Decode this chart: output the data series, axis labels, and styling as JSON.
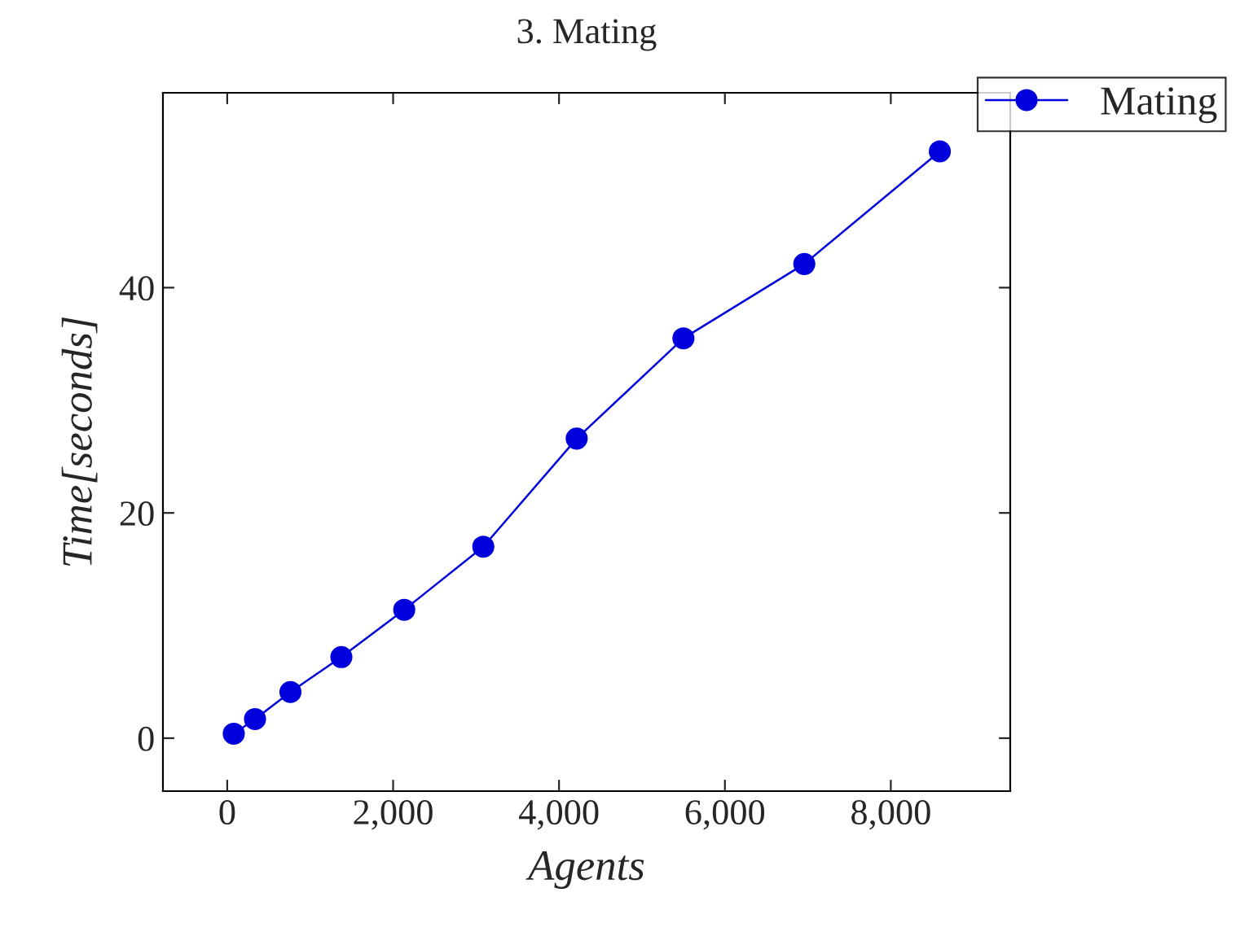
{
  "chart_data": {
    "type": "line",
    "title": "3. Mating",
    "xlabel": "Agents",
    "ylabel": "Time[seconds]",
    "x": [
      79,
      335,
      762,
      1376,
      2134,
      3087,
      4213,
      5500,
      6957,
      8591
    ],
    "series": [
      {
        "name": "Mating",
        "color": "#0000dd",
        "values": [
          0.4,
          1.7,
          4.1,
          7.2,
          11.4,
          17.0,
          26.6,
          35.5,
          42.1,
          52.1
        ]
      }
    ],
    "xlim": [
      -775,
      9440
    ],
    "ylim": [
      -4.7,
      57.3
    ],
    "xticks": [
      0,
      {
        "value": 2000,
        "label": "2,000"
      },
      {
        "value": 4000,
        "label": "4,000"
      },
      {
        "value": 6000,
        "label": "6,000"
      },
      {
        "value": 8000,
        "label": "8,000"
      }
    ],
    "yticks": [
      0,
      20,
      40
    ],
    "legend": "top right",
    "marker": "circle",
    "line_style": "solid",
    "grid": false
  }
}
